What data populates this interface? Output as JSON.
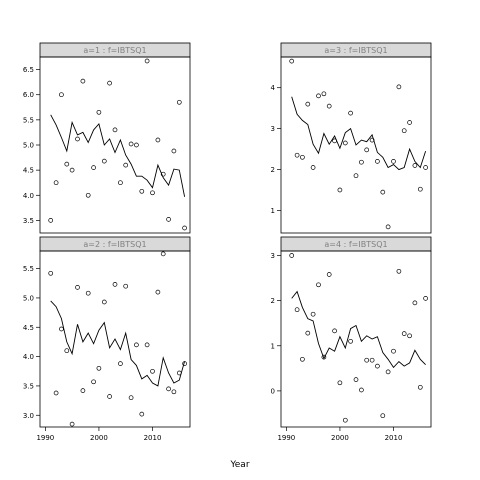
{
  "xlabel": "Year",
  "chart_data": [
    {
      "type": "scatter",
      "panel_label": "a=1  :  f=IBTSQ1",
      "xlim": [
        1989,
        2017
      ],
      "ylim": [
        3.25,
        6.75
      ],
      "yticks": [
        "3.5",
        "4.0",
        "4.5",
        "5.0",
        "5.5",
        "6.0",
        "6.5"
      ],
      "points": {
        "x": [
          1991,
          1992,
          1993,
          1994,
          1995,
          1996,
          1997,
          1998,
          1999,
          2000,
          2001,
          2002,
          2003,
          2004,
          2005,
          2006,
          2007,
          2008,
          2009,
          2010,
          2011,
          2012,
          2013,
          2014,
          2015,
          2016
        ],
        "y": [
          3.5,
          4.25,
          6.0,
          4.62,
          4.5,
          5.12,
          6.27,
          4.0,
          4.55,
          5.65,
          4.68,
          6.23,
          5.3,
          4.25,
          4.6,
          5.02,
          5.0,
          4.08,
          6.67,
          4.05,
          5.1,
          4.42,
          3.52,
          4.88,
          5.85,
          3.35
        ]
      },
      "fit": {
        "x": [
          1991,
          1992,
          1993,
          1994,
          1995,
          1996,
          1997,
          1998,
          1999,
          2000,
          2001,
          2002,
          2003,
          2004,
          2005,
          2006,
          2007,
          2008,
          2009,
          2010,
          2011,
          2012,
          2013,
          2014,
          2015,
          2016
        ],
        "y": [
          5.6,
          5.4,
          5.15,
          4.88,
          5.45,
          5.2,
          5.25,
          5.05,
          5.3,
          5.42,
          5.0,
          5.12,
          4.85,
          5.1,
          4.8,
          4.62,
          4.38,
          4.38,
          4.3,
          4.15,
          4.6,
          4.35,
          4.2,
          4.52,
          4.5,
          3.97
        ]
      },
      "xticks_shown": false
    },
    {
      "type": "scatter",
      "panel_label": "a=3  :  f=IBTSQ1",
      "xlim": [
        1989,
        2017
      ],
      "ylim": [
        0.45,
        4.75
      ],
      "yticks": [
        "1",
        "2",
        "3",
        "4"
      ],
      "points": {
        "x": [
          1991,
          1992,
          1993,
          1994,
          1995,
          1996,
          1997,
          1998,
          1999,
          2000,
          2001,
          2002,
          2003,
          2004,
          2005,
          2006,
          2007,
          2008,
          2009,
          2010,
          2011,
          2012,
          2013,
          2014,
          2015,
          2016
        ],
        "y": [
          4.65,
          2.35,
          2.3,
          3.6,
          2.05,
          3.8,
          3.85,
          3.55,
          2.7,
          1.5,
          2.65,
          3.38,
          1.85,
          2.18,
          2.48,
          2.72,
          2.2,
          1.45,
          0.6,
          2.2,
          4.02,
          2.95,
          3.15,
          2.1,
          1.52,
          2.05
        ]
      },
      "fit": {
        "x": [
          1991,
          1992,
          1993,
          1994,
          1995,
          1996,
          1997,
          1998,
          1999,
          2000,
          2001,
          2002,
          2003,
          2004,
          2005,
          2006,
          2007,
          2008,
          2009,
          2010,
          2011,
          2012,
          2013,
          2014,
          2015,
          2016
        ],
        "y": [
          3.78,
          3.35,
          3.2,
          3.1,
          2.62,
          2.4,
          2.88,
          2.62,
          2.82,
          2.52,
          2.9,
          3.0,
          2.6,
          2.72,
          2.68,
          2.85,
          2.42,
          2.3,
          2.05,
          2.12,
          2.0,
          2.05,
          2.5,
          2.2,
          2.05,
          2.45
        ]
      },
      "xticks_shown": false
    },
    {
      "type": "scatter",
      "panel_label": "a=2  :  f=IBTSQ1",
      "xlim": [
        1989,
        2017
      ],
      "ylim": [
        2.8,
        5.8
      ],
      "yticks": [
        "3.0",
        "3.5",
        "4.0",
        "4.5",
        "5.0",
        "5.5"
      ],
      "points": {
        "x": [
          1991,
          1992,
          1993,
          1994,
          1995,
          1996,
          1997,
          1998,
          1999,
          2000,
          2001,
          2002,
          2003,
          2004,
          2005,
          2006,
          2007,
          2008,
          2009,
          2010,
          2011,
          2012,
          2013,
          2014,
          2015,
          2016
        ],
        "y": [
          5.42,
          3.38,
          4.47,
          4.1,
          2.85,
          5.18,
          3.42,
          5.08,
          3.57,
          3.8,
          4.93,
          3.32,
          5.23,
          3.88,
          5.2,
          3.3,
          4.2,
          3.02,
          4.2,
          3.75,
          5.1,
          5.75,
          3.45,
          3.4,
          3.72,
          3.88
        ]
      },
      "fit": {
        "x": [
          1991,
          1992,
          1993,
          1994,
          1995,
          1996,
          1997,
          1998,
          1999,
          2000,
          2001,
          2002,
          2003,
          2004,
          2005,
          2006,
          2007,
          2008,
          2009,
          2010,
          2011,
          2012,
          2013,
          2014,
          2015,
          2016
        ],
        "y": [
          4.95,
          4.85,
          4.65,
          4.25,
          4.05,
          4.55,
          4.25,
          4.4,
          4.22,
          4.45,
          4.58,
          4.15,
          4.3,
          4.12,
          4.4,
          3.95,
          3.85,
          3.62,
          3.68,
          3.55,
          3.5,
          3.98,
          3.72,
          3.55,
          3.6,
          3.92
        ]
      },
      "xticks_shown": true
    },
    {
      "type": "scatter",
      "panel_label": "a=4  :  f=IBTSQ1",
      "xlim": [
        1989,
        2017
      ],
      "ylim": [
        -0.8,
        3.1
      ],
      "yticks": [
        "0",
        "1",
        "2",
        "3"
      ],
      "points": {
        "x": [
          1991,
          1992,
          1993,
          1994,
          1995,
          1996,
          1997,
          1998,
          1999,
          2000,
          2001,
          2002,
          2003,
          2004,
          2005,
          2006,
          2007,
          2008,
          2009,
          2010,
          2011,
          2012,
          2013,
          2014,
          2015,
          2016
        ],
        "y": [
          3.0,
          1.8,
          0.7,
          1.28,
          1.7,
          2.35,
          0.75,
          2.58,
          1.33,
          0.18,
          -0.65,
          1.1,
          0.25,
          0.02,
          0.68,
          0.68,
          0.55,
          -0.55,
          0.42,
          0.88,
          2.65,
          1.27,
          1.22,
          1.95,
          0.08,
          2.05
        ]
      },
      "fit": {
        "x": [
          1991,
          1992,
          1993,
          1994,
          1995,
          1996,
          1997,
          1998,
          1999,
          2000,
          2001,
          2002,
          2003,
          2004,
          2005,
          2006,
          2007,
          2008,
          2009,
          2010,
          2011,
          2012,
          2013,
          2014,
          2015,
          2016
        ],
        "y": [
          2.05,
          2.2,
          1.85,
          1.6,
          1.55,
          1.05,
          0.72,
          0.95,
          0.88,
          1.2,
          0.95,
          1.38,
          1.45,
          1.1,
          1.22,
          1.15,
          1.2,
          0.85,
          0.7,
          0.52,
          0.65,
          0.55,
          0.62,
          0.9,
          0.7,
          0.58
        ]
      },
      "xticks_shown": true
    }
  ],
  "xticks": [
    "1990",
    "2000",
    "2010"
  ],
  "xtick_values": [
    1990,
    2000,
    2010
  ]
}
